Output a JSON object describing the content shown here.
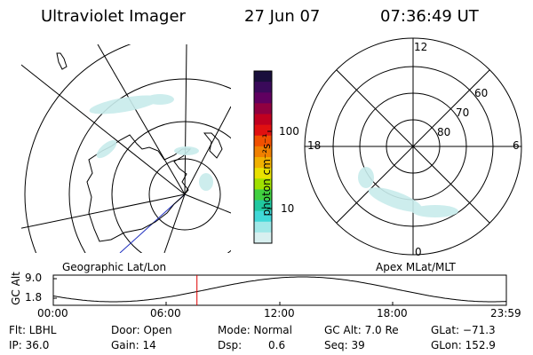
{
  "header": {
    "title": "Ultraviolet Imager",
    "date": "27 Jun 07",
    "time": "07:36:49 UT"
  },
  "colorbar": {
    "unit_label": "photon cm⁻²s⁻¹",
    "ticks": [
      "100",
      "10"
    ],
    "colors": [
      "#1a0f3c",
      "#3a0a5a",
      "#600060",
      "#900040",
      "#c00020",
      "#e01010",
      "#f05000",
      "#f08000",
      "#f0b000",
      "#e8e000",
      "#a0e000",
      "#40d040",
      "#20c8a0",
      "#40d8d8",
      "#a0e8e8",
      "#d8f0f0"
    ]
  },
  "left_map": {
    "caption": "Geographic Lat/Lon"
  },
  "right_map": {
    "caption": "Apex MLat/MLT",
    "mlt_labels": {
      "top": "12",
      "left": "18",
      "right": "6",
      "bottom": "0"
    },
    "lat_labels": [
      "60",
      "70",
      "80"
    ]
  },
  "altitude_plot": {
    "ylabel": "GC Alt",
    "yticks": [
      "9.0",
      "1.8"
    ],
    "xticks": [
      "00:00",
      "06:00",
      "12:00",
      "18:00",
      "23:59"
    ],
    "current_time_hours": 7.61
  },
  "info": {
    "flt": "Flt: LBHL",
    "door": "Door: Open",
    "mode": "Mode: Normal",
    "gcalt": "GC Alt: 7.0 Re",
    "glat": "GLat: −71.3",
    "ip": "IP: 36.0",
    "gain": "Gain: 14",
    "dsp_label": "Dsp:",
    "dsp_value": "0.6",
    "seq": "Seq: 39",
    "glon": "GLon: 152.9"
  }
}
